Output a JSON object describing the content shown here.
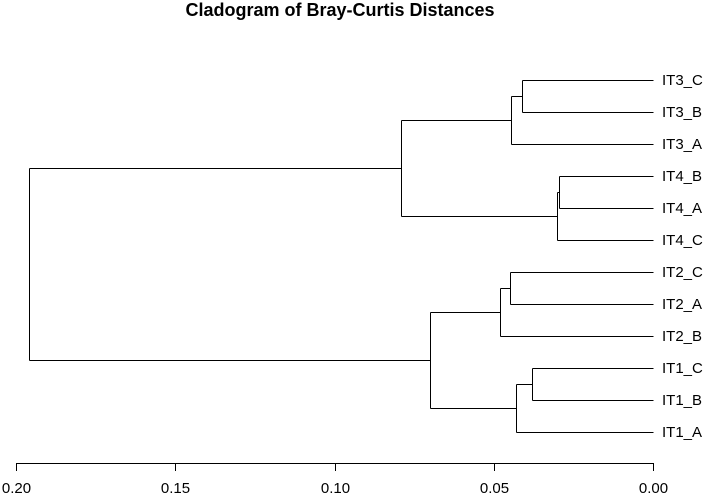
{
  "chart_data": {
    "type": "dendrogram",
    "title": "Cladogram of Bray-Curtis Distances",
    "orientation": "horizontal",
    "x_axis": {
      "reversed": true,
      "range": [
        0.2,
        0.0
      ],
      "ticks": [
        0.2,
        0.15,
        0.1,
        0.05,
        0.0
      ],
      "tick_labels": [
        "0.20",
        "0.15",
        "0.10",
        "0.05",
        "0.00"
      ]
    },
    "leaves": [
      "IT3_C",
      "IT3_B",
      "IT3_A",
      "IT4_B",
      "IT4_A",
      "IT4_C",
      "IT2_C",
      "IT2_A",
      "IT2_B",
      "IT1_C",
      "IT1_B",
      "IT1_A"
    ],
    "merges": [
      {
        "id": "n1",
        "children": [
          "IT3_C",
          "IT3_B"
        ],
        "height": 0.041
      },
      {
        "id": "n2",
        "children": [
          "n1",
          "IT3_A"
        ],
        "height": 0.0445
      },
      {
        "id": "n3",
        "children": [
          "IT4_B",
          "IT4_A"
        ],
        "height": 0.0295
      },
      {
        "id": "n4",
        "children": [
          "n3",
          "IT4_C"
        ],
        "height": 0.03
      },
      {
        "id": "n5",
        "children": [
          "n2",
          "n4"
        ],
        "height": 0.079
      },
      {
        "id": "n6",
        "children": [
          "IT2_C",
          "IT2_A"
        ],
        "height": 0.045
      },
      {
        "id": "n7",
        "children": [
          "n6",
          "IT2_B"
        ],
        "height": 0.048
      },
      {
        "id": "n8",
        "children": [
          "IT1_C",
          "IT1_B"
        ],
        "height": 0.038
      },
      {
        "id": "n9",
        "children": [
          "n8",
          "IT1_A"
        ],
        "height": 0.043
      },
      {
        "id": "n10",
        "children": [
          "n7",
          "n9"
        ],
        "height": 0.07
      },
      {
        "id": "n11",
        "children": [
          "n5",
          "n10"
        ],
        "height": 0.196
      }
    ]
  }
}
